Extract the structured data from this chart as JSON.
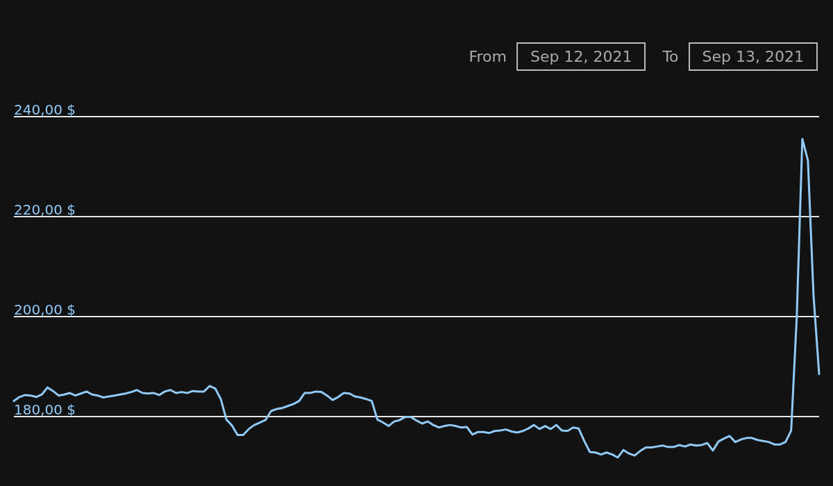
{
  "chart_data": {
    "type": "line",
    "annotations": [
      "From",
      "Sep 12, 2021",
      "To",
      "Sep 13, 2021"
    ],
    "categories": [
      null,
      null,
      null,
      null,
      null,
      null,
      null,
      null,
      null,
      null,
      null,
      null,
      null,
      null,
      null,
      null,
      null,
      null,
      null,
      null,
      null,
      null,
      null,
      null,
      null,
      null,
      null,
      null,
      null,
      null,
      null,
      null,
      null,
      null,
      null,
      null,
      null,
      null,
      null,
      null,
      null,
      null,
      null,
      null,
      null,
      null,
      null,
      null,
      null,
      null,
      null,
      null,
      null,
      null,
      null,
      null,
      null,
      null,
      null,
      null,
      null,
      null,
      null,
      null,
      null,
      null,
      null,
      null,
      null,
      null,
      null,
      null,
      null,
      null,
      null,
      null,
      null,
      null,
      null,
      null,
      null,
      null,
      null,
      null,
      null,
      null,
      null,
      null,
      null,
      null,
      null,
      null,
      null,
      null,
      null,
      null,
      null,
      null,
      null,
      null,
      null,
      null,
      null,
      null,
      null,
      null,
      null,
      null,
      null,
      null,
      null,
      null,
      null,
      null,
      null,
      null,
      null,
      null,
      null,
      null,
      null,
      null,
      null,
      null,
      null,
      null,
      null,
      null,
      null,
      null,
      null,
      null,
      null,
      null,
      null,
      null,
      null,
      null,
      null,
      null,
      null,
      null,
      null,
      null,
      null
    ],
    "series": [
      {
        "color": "#90caf9",
        "values": [
          183.1,
          183.9,
          184.3,
          184.2,
          183.9,
          184.4,
          185.8,
          185.1,
          184.2,
          184.4,
          184.7,
          184.2,
          184.6,
          185.0,
          184.4,
          184.2,
          183.8,
          184.0,
          184.2,
          184.4,
          184.6,
          184.9,
          185.3,
          184.7,
          184.6,
          184.7,
          184.3,
          185.0,
          185.3,
          184.7,
          184.9,
          184.7,
          185.1,
          185.0,
          185.0,
          186.1,
          185.6,
          183.5,
          179.4,
          178.2,
          176.3,
          176.3,
          177.5,
          178.3,
          178.8,
          179.3,
          181.1,
          181.5,
          181.7,
          182.1,
          182.5,
          183.1,
          184.7,
          184.7,
          185.0,
          184.9,
          184.2,
          183.3,
          183.9,
          184.7,
          184.6,
          184.0,
          183.8,
          183.5,
          183.1,
          179.4,
          178.8,
          178.1,
          179.0,
          179.3,
          179.9,
          179.9,
          179.2,
          178.6,
          179.0,
          178.3,
          177.8,
          178.1,
          178.3,
          178.1,
          177.8,
          177.9,
          176.4,
          176.9,
          176.9,
          176.7,
          177.1,
          177.2,
          177.4,
          177.0,
          176.8,
          177.1,
          177.6,
          178.3,
          177.5,
          178.1,
          177.5,
          178.3,
          177.2,
          177.1,
          177.8,
          177.6,
          175.1,
          172.9,
          172.8,
          172.4,
          172.8,
          172.4,
          171.8,
          173.3,
          172.6,
          172.2,
          173.1,
          173.8,
          173.8,
          174.0,
          174.2,
          173.9,
          173.9,
          174.3,
          174.0,
          174.4,
          174.2,
          174.3,
          174.7,
          173.2,
          175.0,
          175.6,
          176.1,
          174.9,
          175.4,
          175.7,
          175.7,
          175.3,
          175.1,
          174.9,
          174.4,
          174.4,
          174.9,
          177.2,
          199.9,
          235.5,
          231.2,
          204.2,
          188.5
        ]
      }
    ],
    "ylim": [
      166.1,
      263.3
    ],
    "yticks": [
      {
        "value": 180,
        "label": "180,00 $"
      },
      {
        "value": 200,
        "label": "200,00 $"
      },
      {
        "value": 220,
        "label": "220,00 $"
      },
      {
        "value": 240,
        "label": "240,00 $"
      }
    ],
    "grid": "y",
    "tick_labels": "y",
    "line_style": "solid"
  }
}
